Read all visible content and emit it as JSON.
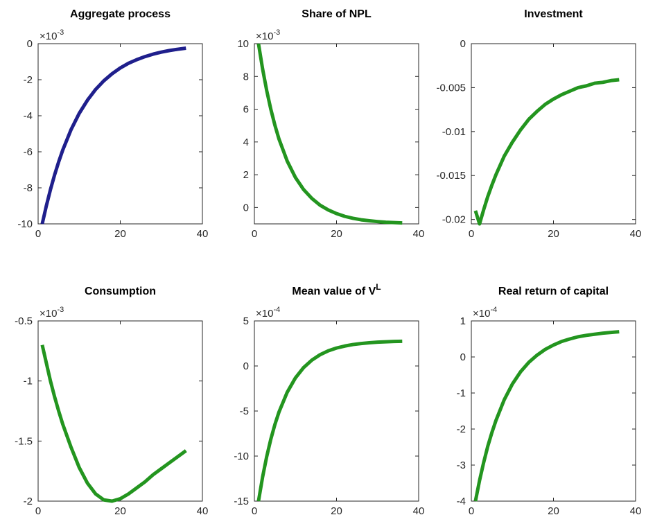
{
  "chart_data": [
    {
      "type": "line",
      "title": "Aggregate process",
      "color": "#1f1f8c",
      "y_scale_base": "×10",
      "y_scale_exponent": "-3",
      "x": [
        1,
        2,
        3,
        4,
        5,
        6,
        8,
        10,
        12,
        14,
        16,
        18,
        20,
        22,
        24,
        26,
        28,
        30,
        32,
        34,
        36
      ],
      "values": [
        -10,
        -9,
        -8.1,
        -7.29,
        -6.56,
        -5.9,
        -4.78,
        -3.87,
        -3.14,
        -2.54,
        -2.06,
        -1.67,
        -1.35,
        -1.09,
        -0.89,
        -0.72,
        -0.58,
        -0.47,
        -0.38,
        -0.31,
        -0.25
      ],
      "xlim": [
        0,
        40
      ],
      "xticks": [
        0,
        20,
        40
      ],
      "ylim": [
        -10,
        0
      ],
      "yticks": [
        -10,
        -8,
        -6,
        -4,
        -2,
        0
      ]
    },
    {
      "type": "line",
      "title": "Share of NPL",
      "color": "#23951f",
      "y_scale_base": "×10",
      "y_scale_exponent": "-3",
      "x": [
        1,
        2,
        3,
        4,
        5,
        6,
        8,
        10,
        12,
        14,
        16,
        18,
        20,
        22,
        24,
        26,
        28,
        30,
        32,
        34,
        36
      ],
      "values": [
        10,
        8.46,
        7.14,
        6,
        5.02,
        4.17,
        2.83,
        1.83,
        1.09,
        0.55,
        0.14,
        -0.15,
        -0.37,
        -0.54,
        -0.66,
        -0.75,
        -0.81,
        -0.86,
        -0.9,
        -0.92,
        -0.94
      ],
      "xlim": [
        0,
        40
      ],
      "xticks": [
        0,
        20,
        40
      ],
      "ylim": [
        -1,
        10
      ],
      "yticks": [
        0,
        2,
        4,
        6,
        8,
        10
      ]
    },
    {
      "type": "line",
      "title": "Investment",
      "color": "#23951f",
      "x": [
        1,
        2,
        3,
        4,
        5,
        6,
        8,
        10,
        12,
        14,
        16,
        18,
        20,
        22,
        24,
        26,
        28,
        30,
        32,
        34,
        36
      ],
      "values": [
        -0.019,
        -0.0205,
        -0.0189,
        -0.0174,
        -0.0161,
        -0.0149,
        -0.0128,
        -0.0112,
        -0.0098,
        -0.0086,
        -0.0077,
        -0.0069,
        -0.0063,
        -0.0058,
        -0.0054,
        -0.005,
        -0.0048,
        -0.0045,
        -0.0044,
        -0.0042,
        -0.0041
      ],
      "xlim": [
        0,
        40
      ],
      "xticks": [
        0,
        20,
        40
      ],
      "ylim": [
        -0.0205,
        0
      ],
      "yticks": [
        -0.02,
        -0.015,
        -0.01,
        -0.005,
        0
      ]
    },
    {
      "type": "line",
      "title": "Consumption",
      "color": "#23951f",
      "y_scale_base": "×10",
      "y_scale_exponent": "-3",
      "x": [
        1,
        2,
        3,
        4,
        5,
        6,
        8,
        10,
        12,
        14,
        16,
        18,
        20,
        22,
        24,
        26,
        28,
        30,
        32,
        34,
        36
      ],
      "values": [
        -0.7,
        -0.85,
        -1,
        -1.13,
        -1.25,
        -1.36,
        -1.55,
        -1.72,
        -1.85,
        -1.94,
        -1.99,
        -2,
        -1.98,
        -1.94,
        -1.89,
        -1.84,
        -1.78,
        -1.73,
        -1.68,
        -1.63,
        -1.58
      ],
      "xlim": [
        0,
        40
      ],
      "xticks": [
        0,
        20,
        40
      ],
      "ylim": [
        -2,
        -0.5
      ],
      "yticks": [
        -2,
        -1.5,
        -1,
        -0.5
      ]
    },
    {
      "type": "line",
      "title": "Mean value of V",
      "title_superscript": "L",
      "color": "#23951f",
      "y_scale_base": "×10",
      "y_scale_exponent": "-4",
      "x": [
        1,
        2,
        3,
        4,
        5,
        6,
        8,
        10,
        12,
        14,
        16,
        18,
        20,
        22,
        24,
        26,
        28,
        30,
        32,
        34,
        36
      ],
      "values": [
        -15,
        -12.33,
        -10.06,
        -8.13,
        -6.49,
        -5.1,
        -2.91,
        -1.32,
        -0.17,
        0.65,
        1.25,
        1.68,
        1.99,
        2.21,
        2.38,
        2.49,
        2.58,
        2.64,
        2.68,
        2.72,
        2.74
      ],
      "xlim": [
        0,
        40
      ],
      "xticks": [
        0,
        20,
        40
      ],
      "ylim": [
        -15,
        5
      ],
      "yticks": [
        -15,
        -10,
        -5,
        0,
        5
      ]
    },
    {
      "type": "line",
      "title": "Real return of capital",
      "color": "#23951f",
      "y_scale_base": "×10",
      "y_scale_exponent": "-4",
      "x": [
        1,
        2,
        3,
        4,
        5,
        6,
        8,
        10,
        12,
        14,
        16,
        18,
        20,
        22,
        24,
        26,
        28,
        30,
        32,
        34,
        36
      ],
      "values": [
        -4,
        -3.43,
        -2.93,
        -2.48,
        -2.1,
        -1.76,
        -1.19,
        -0.75,
        -0.41,
        -0.15,
        0.05,
        0.21,
        0.33,
        0.43,
        0.5,
        0.56,
        0.6,
        0.63,
        0.66,
        0.68,
        0.7
      ],
      "xlim": [
        0,
        40
      ],
      "xticks": [
        0,
        20,
        40
      ],
      "ylim": [
        -4,
        1
      ],
      "yticks": [
        -4,
        -3,
        -2,
        -1,
        0,
        1
      ]
    }
  ]
}
